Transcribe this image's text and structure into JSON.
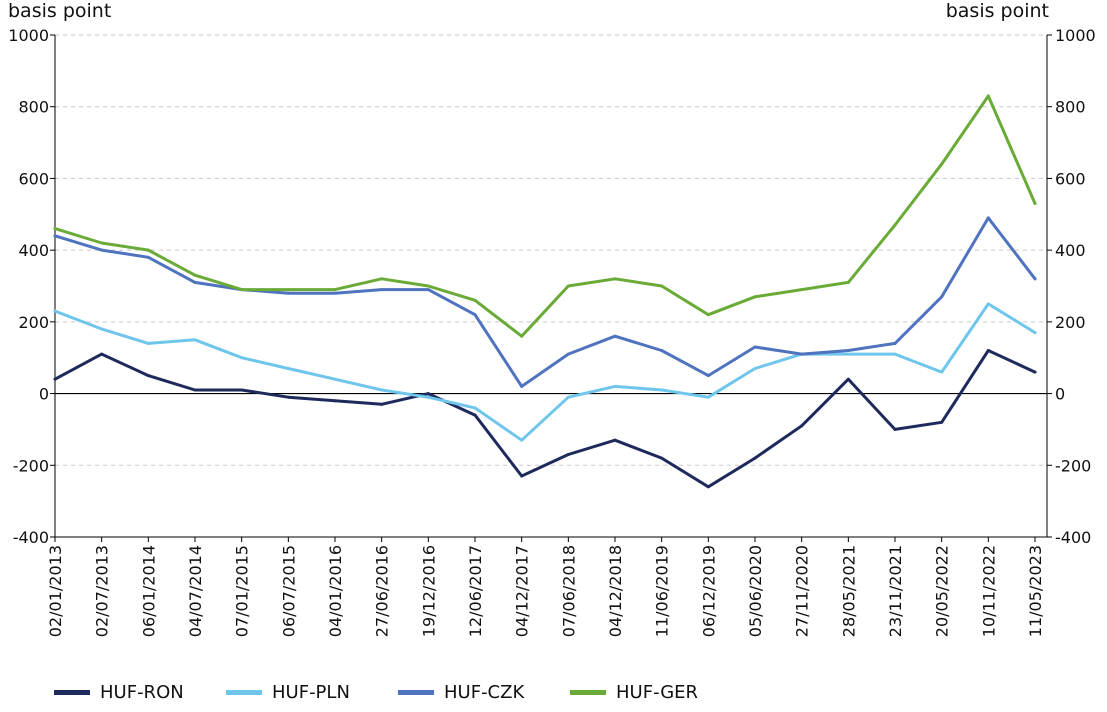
{
  "chart_data": {
    "type": "line",
    "ylabel_left": "basis point",
    "ylabel_right": "basis point",
    "ylim": [
      -400,
      1000
    ],
    "yticks": [
      1000,
      800,
      600,
      400,
      200,
      0,
      -200,
      -400
    ],
    "grid": "horizontal dashed",
    "legend_position": "bottom",
    "x_tick_labels": [
      "02/01/2013",
      "02/07/2013",
      "06/01/2014",
      "04/07/2014",
      "07/01/2015",
      "06/07/2015",
      "04/01/2016",
      "27/06/2016",
      "19/12/2016",
      "12/06/2017",
      "04/12/2017",
      "07/06/2018",
      "04/12/2018",
      "11/06/2019",
      "06/12/2019",
      "05/06/2020",
      "27/11/2020",
      "28/05/2021",
      "23/11/2021",
      "20/05/2022",
      "10/11/2022",
      "11/05/2023"
    ],
    "x": [
      "02/01/2013",
      "02/07/2013",
      "06/01/2014",
      "04/07/2014",
      "07/01/2015",
      "06/07/2015",
      "04/01/2016",
      "27/06/2016",
      "19/12/2016",
      "12/06/2017",
      "04/12/2017",
      "07/06/2018",
      "04/12/2018",
      "11/06/2019",
      "06/12/2019",
      "05/06/2020",
      "27/11/2020",
      "28/05/2021",
      "23/11/2021",
      "20/05/2022",
      "10/11/2022",
      "11/05/2023"
    ],
    "series": [
      {
        "name": "HUF-RON",
        "color": "#1f2a5c",
        "values": [
          40,
          110,
          50,
          10,
          10,
          -10,
          -20,
          -30,
          0,
          -60,
          -230,
          -170,
          -130,
          -180,
          -260,
          -180,
          -90,
          40,
          -100,
          -80,
          120,
          60
        ]
      },
      {
        "name": "HUF-PLN",
        "color": "#6ec6ec",
        "values": [
          230,
          180,
          140,
          150,
          100,
          70,
          40,
          10,
          -10,
          -40,
          -130,
          -10,
          20,
          10,
          -10,
          70,
          110,
          110,
          110,
          60,
          250,
          170
        ]
      },
      {
        "name": "HUF-CZK",
        "color": "#4f73bf",
        "values": [
          440,
          400,
          380,
          310,
          290,
          280,
          280,
          290,
          290,
          220,
          20,
          110,
          160,
          120,
          50,
          130,
          110,
          120,
          140,
          270,
          490,
          320
        ]
      },
      {
        "name": "HUF-GER",
        "color": "#6aaa37",
        "values": [
          460,
          420,
          400,
          330,
          290,
          290,
          290,
          320,
          300,
          260,
          160,
          300,
          320,
          300,
          220,
          270,
          290,
          310,
          470,
          640,
          830,
          530
        ]
      }
    ]
  },
  "legend": {
    "items": [
      {
        "label": "HUF-RON",
        "color": "#1f2a5c"
      },
      {
        "label": "HUF-PLN",
        "color": "#6ec6ec"
      },
      {
        "label": "HUF-CZK",
        "color": "#4f73bf"
      },
      {
        "label": "HUF-GER",
        "color": "#6aaa37"
      }
    ]
  }
}
